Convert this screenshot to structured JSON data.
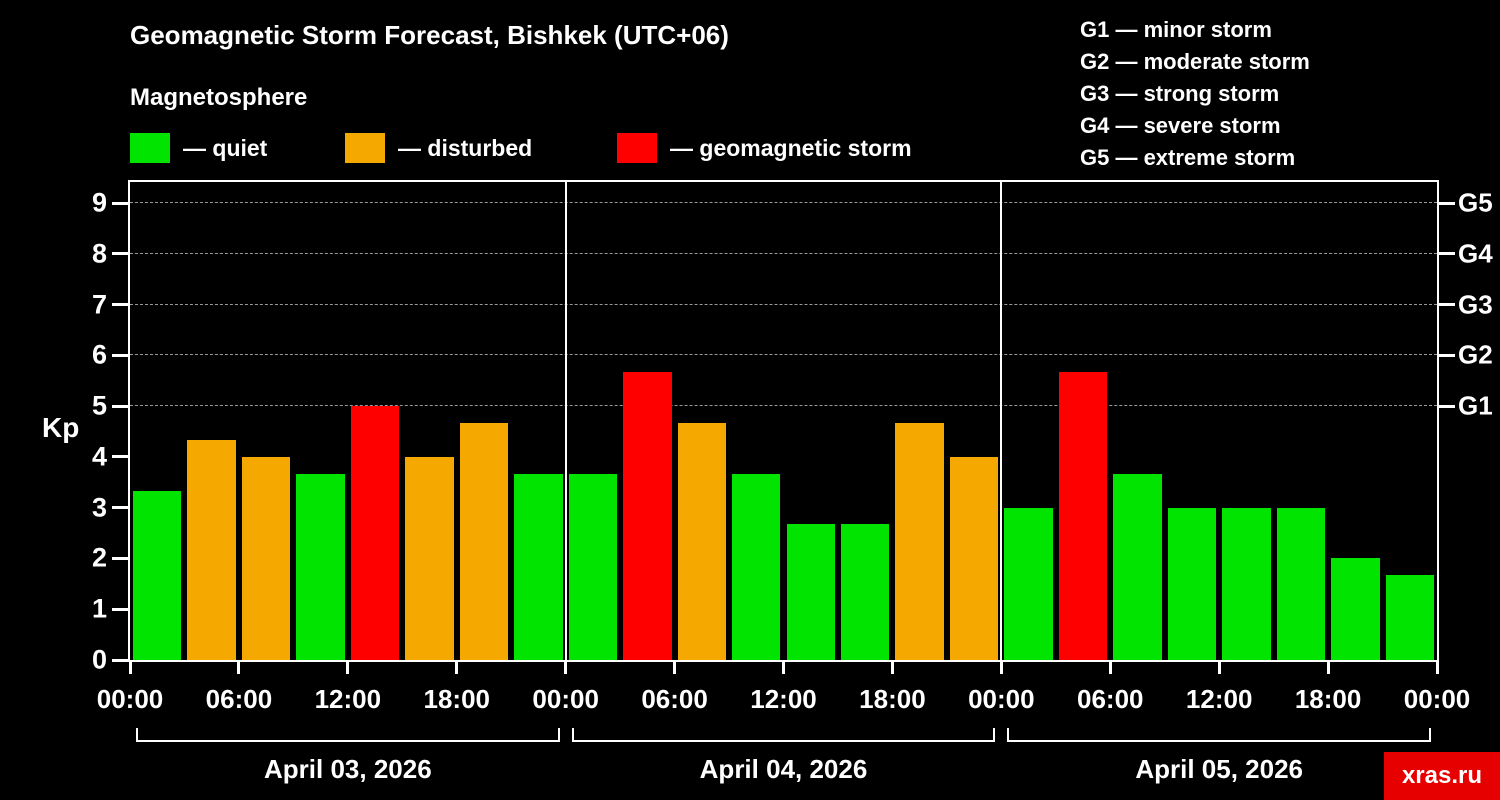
{
  "title": "Geomagnetic Storm Forecast, Bishkek (UTC+06)",
  "subtitle": "Magnetosphere",
  "legend": {
    "items": [
      {
        "key": "quiet",
        "label": "— quiet",
        "color": "#00e400"
      },
      {
        "key": "disturbed",
        "label": "— disturbed",
        "color": "#f5a800"
      },
      {
        "key": "storm",
        "label": "— geomagnetic storm",
        "color": "#ff0000"
      }
    ]
  },
  "g_scale": [
    "G1 — minor storm",
    "G2 — moderate storm",
    "G3 — strong storm",
    "G4 — severe storm",
    "G5 — extreme storm"
  ],
  "watermark": "xras.ru",
  "colors": {
    "watermark_bg": "#e60000",
    "axis": "#ffffff",
    "grid": "#999999"
  },
  "chart_data": {
    "type": "bar",
    "title": "Geomagnetic Storm Forecast, Bishkek (UTC+06)",
    "xlabel": "",
    "ylabel": "Kp",
    "ylim": [
      0,
      9.5
    ],
    "yticks": [
      0,
      1,
      2,
      3,
      4,
      5,
      6,
      7,
      8,
      9
    ],
    "gridlines": [
      5,
      6,
      7,
      8,
      9
    ],
    "grid": "dashed horizontal at G-storm levels only",
    "legend_position": "top",
    "right_axis": [
      {
        "label": "G1",
        "value": 5
      },
      {
        "label": "G2",
        "value": 6
      },
      {
        "label": "G3",
        "value": 7
      },
      {
        "label": "G4",
        "value": 8
      },
      {
        "label": "G5",
        "value": 9
      }
    ],
    "x_tick_labels": [
      "00:00",
      "06:00",
      "12:00",
      "18:00",
      "00:00",
      "06:00",
      "12:00",
      "18:00",
      "00:00",
      "06:00",
      "12:00",
      "18:00",
      "00:00"
    ],
    "bar_interval_hours": 3,
    "colors": {
      "quiet": "#00e400",
      "disturbed": "#f5a800",
      "storm": "#ff0000"
    },
    "thresholds": {
      "disturbed_min": 4,
      "storm_min": 5
    },
    "days": [
      {
        "date": "April 03, 2026",
        "values": [
          3.33,
          4.33,
          4.0,
          3.67,
          5.0,
          4.0,
          4.67,
          3.67
        ]
      },
      {
        "date": "April 04, 2026",
        "values": [
          3.67,
          5.67,
          4.67,
          3.67,
          2.67,
          2.67,
          4.67,
          4.0
        ]
      },
      {
        "date": "April 05, 2026",
        "values": [
          3.0,
          5.67,
          3.67,
          3.0,
          3.0,
          3.0,
          2.0,
          1.67
        ]
      }
    ]
  }
}
